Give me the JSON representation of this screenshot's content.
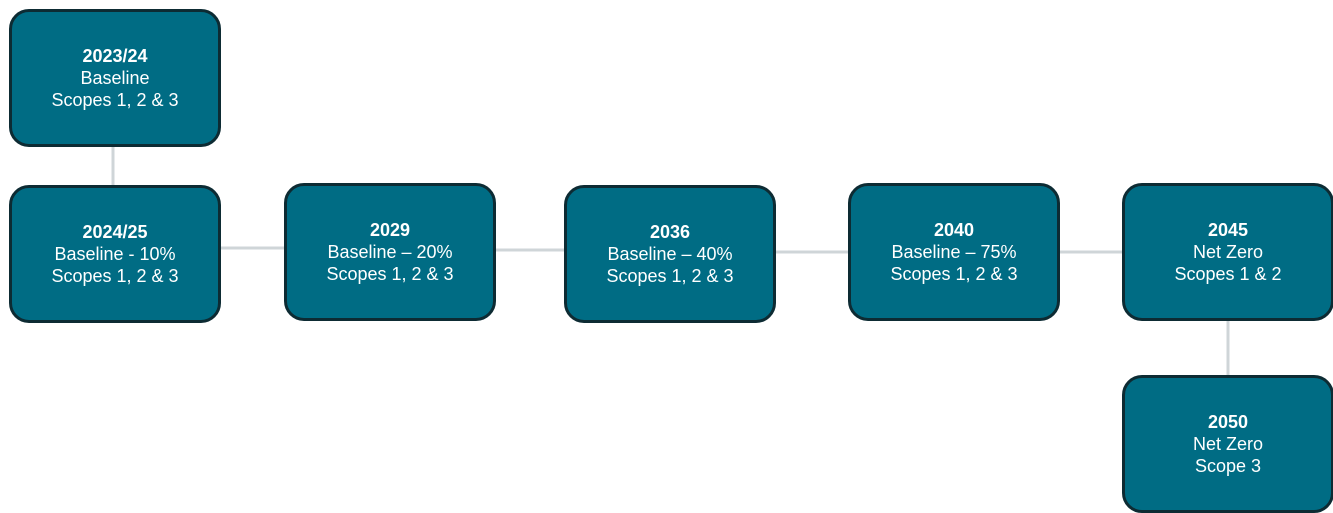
{
  "milestones": [
    {
      "year": "2023/24",
      "target": "Baseline",
      "scope": "Scopes 1, 2 & 3"
    },
    {
      "year": "2024/25",
      "target": "Baseline - 10%",
      "scope": "Scopes 1, 2 & 3"
    },
    {
      "year": "2029",
      "target": "Baseline – 20%",
      "scope": "Scopes 1, 2 & 3"
    },
    {
      "year": "2036",
      "target": "Baseline – 40%",
      "scope": "Scopes 1, 2 & 3"
    },
    {
      "year": "2040",
      "target": "Baseline – 75%",
      "scope": "Scopes 1, 2 & 3"
    },
    {
      "year": "2045",
      "target": "Net Zero",
      "scope": "Scopes 1 & 2"
    },
    {
      "year": "2050",
      "target": "Net Zero",
      "scope": "Scope 3"
    }
  ],
  "colors": {
    "node_fill": "#006c84",
    "node_border": "#0d2b33",
    "connector": "#cfd5d8",
    "text": "#ffffff"
  }
}
